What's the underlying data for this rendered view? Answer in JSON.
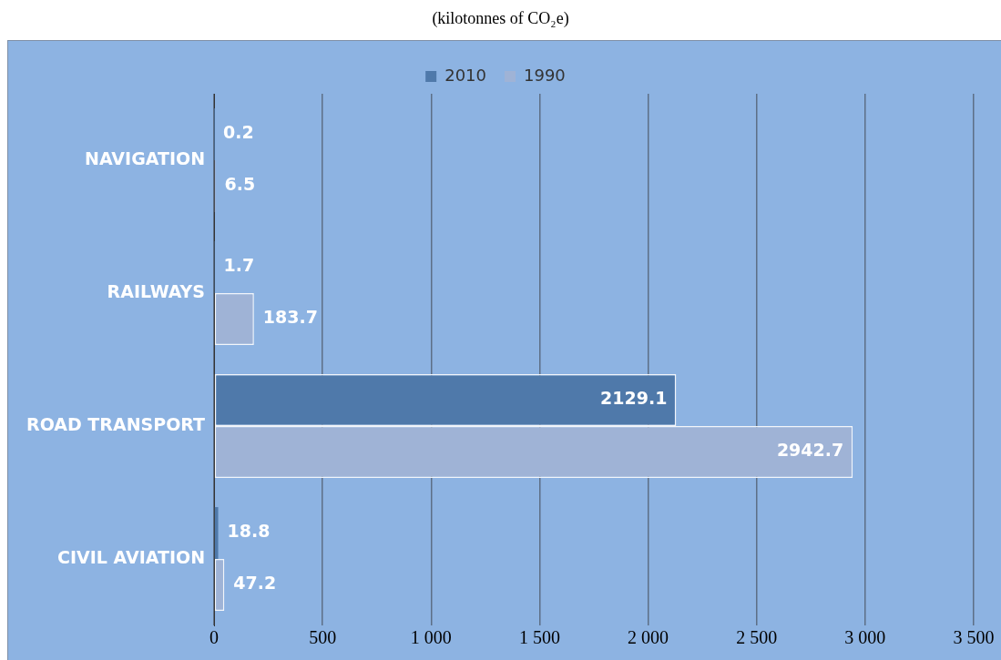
{
  "chart_data": {
    "type": "bar",
    "orientation": "horizontal",
    "title": "(kilotonnes of CO₂e)",
    "categories": [
      "NAVIGATION",
      "RAILWAYS",
      "ROAD TRANSPORT",
      "CIVIL AVIATION"
    ],
    "series": [
      {
        "name": "2010",
        "color": "#4f79aa",
        "values": [
          0.2,
          1.7,
          2129.1,
          18.8
        ]
      },
      {
        "name": "1990",
        "color": "#9fb3d6",
        "values": [
          6.5,
          183.7,
          2942.7,
          47.2
        ]
      }
    ],
    "xlim": [
      0,
      3500
    ],
    "xticks": [
      0,
      500,
      {
        "value": 1000,
        "label": "1 000"
      },
      {
        "value": 1500,
        "label": "1 500"
      },
      {
        "value": 2000,
        "label": "2 000"
      },
      {
        "value": 2500,
        "label": "2 500"
      },
      {
        "value": 3000,
        "label": "3 000"
      },
      {
        "value": 3500,
        "label": "3 500"
      }
    ],
    "grid": "x",
    "legend": "top",
    "data_labels": true
  }
}
